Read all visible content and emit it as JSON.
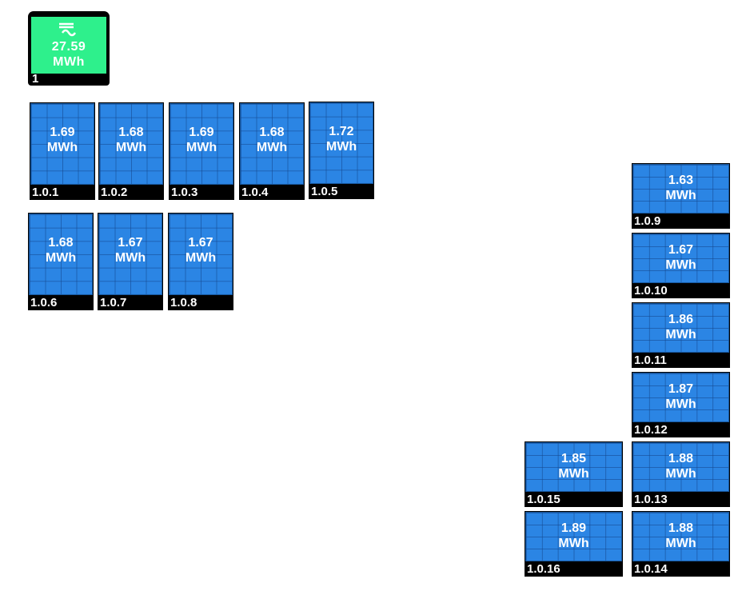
{
  "inverter": {
    "id": "1",
    "energy": "27.59",
    "unit": "MWh",
    "icon": "ac-dc-inverter-icon",
    "screen_color": "#2ef08c"
  },
  "panel_color": "#2b85e4",
  "portrait_panels": [
    {
      "id": "1.0.1",
      "energy": "1.69",
      "unit": "MWh"
    },
    {
      "id": "1.0.2",
      "energy": "1.68",
      "unit": "MWh"
    },
    {
      "id": "1.0.3",
      "energy": "1.69",
      "unit": "MWh"
    },
    {
      "id": "1.0.4",
      "energy": "1.68",
      "unit": "MWh"
    },
    {
      "id": "1.0.5",
      "energy": "1.72",
      "unit": "MWh"
    },
    {
      "id": "1.0.6",
      "energy": "1.68",
      "unit": "MWh"
    },
    {
      "id": "1.0.7",
      "energy": "1.67",
      "unit": "MWh"
    },
    {
      "id": "1.0.8",
      "energy": "1.67",
      "unit": "MWh"
    }
  ],
  "landscape_panels": [
    {
      "id": "1.0.9",
      "energy": "1.63",
      "unit": "MWh"
    },
    {
      "id": "1.0.10",
      "energy": "1.67",
      "unit": "MWh"
    },
    {
      "id": "1.0.11",
      "energy": "1.86",
      "unit": "MWh"
    },
    {
      "id": "1.0.12",
      "energy": "1.87",
      "unit": "MWh"
    },
    {
      "id": "1.0.13",
      "energy": "1.88",
      "unit": "MWh"
    },
    {
      "id": "1.0.14",
      "energy": "1.88",
      "unit": "MWh"
    },
    {
      "id": "1.0.15",
      "energy": "1.85",
      "unit": "MWh"
    },
    {
      "id": "1.0.16",
      "energy": "1.89",
      "unit": "MWh"
    }
  ]
}
